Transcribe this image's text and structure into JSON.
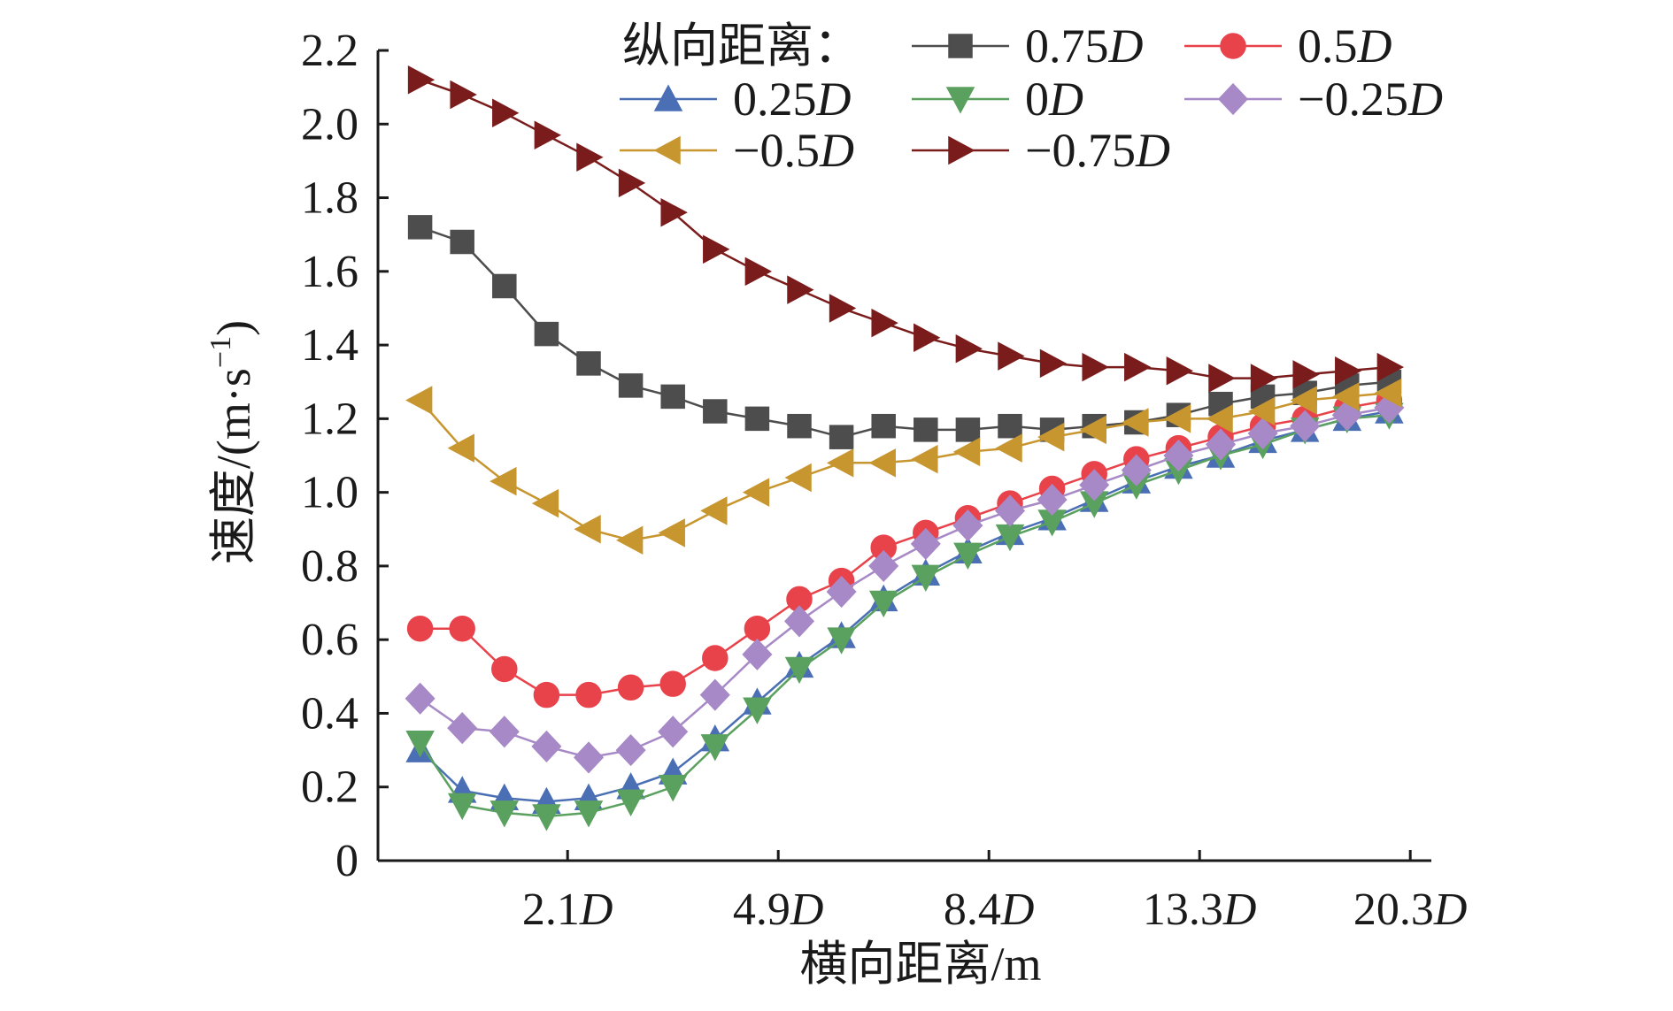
{
  "chart_data": {
    "type": "line",
    "xlabel": "横向距离/m",
    "ylabel": "速度/(m·s",
    "ylabel_sup": "−1",
    "ylabel_close": ")",
    "ylim": [
      0,
      2.2
    ],
    "yticks": [
      "0",
      "0.2",
      "0.4",
      "0.6",
      "0.8",
      "1.0",
      "1.2",
      "1.4",
      "1.6",
      "1.8",
      "2.0",
      "2.2"
    ],
    "xticks": [
      {
        "index": 4.5,
        "num": "2.1",
        "unit": "D"
      },
      {
        "index": 9.5,
        "num": "4.9",
        "unit": "D"
      },
      {
        "index": 14.5,
        "num": "8.4",
        "unit": "D"
      },
      {
        "index": 19.5,
        "num": "13.3",
        "unit": "D"
      },
      {
        "index": 24.5,
        "num": "20.3",
        "unit": "D"
      }
    ],
    "point_count": 24,
    "legend_title": "纵向距离：",
    "series": [
      {
        "name": "0.75",
        "unit": "D",
        "color": "#4d4d4d",
        "marker": "square",
        "values": [
          1.72,
          1.68,
          1.56,
          1.43,
          1.35,
          1.29,
          1.26,
          1.22,
          1.2,
          1.18,
          1.15,
          1.18,
          1.17,
          1.17,
          1.18,
          1.17,
          1.18,
          1.19,
          1.21,
          1.24,
          1.26,
          1.27,
          1.29,
          1.3
        ]
      },
      {
        "name": "0.5",
        "unit": "D",
        "color": "#e8424b",
        "marker": "circle",
        "values": [
          0.63,
          0.63,
          0.52,
          0.45,
          0.45,
          0.47,
          0.48,
          0.55,
          0.63,
          0.71,
          0.76,
          0.85,
          0.89,
          0.93,
          0.97,
          1.01,
          1.05,
          1.09,
          1.12,
          1.15,
          1.18,
          1.2,
          1.23,
          1.25
        ]
      },
      {
        "name": "0.25",
        "unit": "D",
        "color": "#4a6fb5",
        "marker": "triangle-up",
        "values": [
          0.3,
          0.19,
          0.17,
          0.16,
          0.17,
          0.2,
          0.24,
          0.33,
          0.43,
          0.53,
          0.61,
          0.71,
          0.78,
          0.84,
          0.89,
          0.93,
          0.98,
          1.03,
          1.07,
          1.1,
          1.14,
          1.17,
          1.2,
          1.22
        ]
      },
      {
        "name": "0",
        "unit": "D",
        "color": "#5aa05e",
        "marker": "triangle-down",
        "values": [
          0.32,
          0.15,
          0.13,
          0.12,
          0.13,
          0.16,
          0.2,
          0.31,
          0.41,
          0.52,
          0.6,
          0.7,
          0.77,
          0.83,
          0.88,
          0.92,
          0.97,
          1.02,
          1.06,
          1.1,
          1.13,
          1.17,
          1.2,
          1.21
        ]
      },
      {
        "name": "−0.25",
        "unit": "D",
        "color": "#a689c6",
        "marker": "diamond",
        "values": [
          0.44,
          0.36,
          0.35,
          0.31,
          0.28,
          0.3,
          0.35,
          0.45,
          0.56,
          0.65,
          0.73,
          0.8,
          0.86,
          0.91,
          0.95,
          0.98,
          1.02,
          1.06,
          1.1,
          1.13,
          1.16,
          1.18,
          1.21,
          1.23
        ]
      },
      {
        "name": "−0.5",
        "unit": "D",
        "color": "#c8962f",
        "marker": "triangle-left",
        "values": [
          1.25,
          1.12,
          1.03,
          0.97,
          0.9,
          0.87,
          0.89,
          0.95,
          1.0,
          1.04,
          1.08,
          1.08,
          1.09,
          1.11,
          1.12,
          1.15,
          1.17,
          1.19,
          1.2,
          1.2,
          1.22,
          1.25,
          1.26,
          1.27
        ]
      },
      {
        "name": "−0.75",
        "unit": "D",
        "color": "#7b1c1c",
        "marker": "triangle-right",
        "values": [
          2.12,
          2.08,
          2.03,
          1.97,
          1.91,
          1.84,
          1.76,
          1.66,
          1.6,
          1.55,
          1.5,
          1.46,
          1.42,
          1.39,
          1.37,
          1.35,
          1.34,
          1.34,
          1.33,
          1.31,
          1.31,
          1.32,
          1.33,
          1.34
        ]
      }
    ]
  }
}
